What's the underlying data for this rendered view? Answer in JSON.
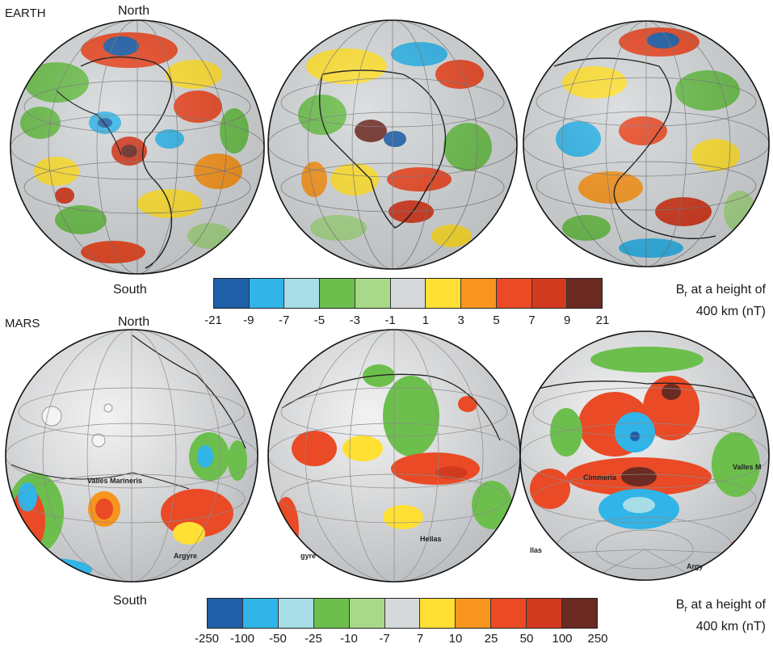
{
  "earth": {
    "title": "EARTH",
    "north": "North",
    "south": "South",
    "colorbar": {
      "title_prefix": "B",
      "title_sub": "r",
      "title_rest": " at a height of",
      "title_line2": "400 km (nT)",
      "ticks": [
        "-21",
        "-9",
        "-7",
        "-5",
        "-3",
        "-1",
        "1",
        "3",
        "5",
        "7",
        "9",
        "21"
      ],
      "colors": [
        "#1f5fa8",
        "#31b4e8",
        "#a6dde6",
        "#6cbf4c",
        "#a8d88a",
        "#d6d9db",
        "#ffe033",
        "#f7951e",
        "#ea4a25",
        "#d23a1f",
        "#6b2a22"
      ]
    }
  },
  "mars": {
    "title": "MARS",
    "north": "North",
    "south": "South",
    "places": {
      "valles_marineris": "Valles Marineris",
      "argyre": "Argyre",
      "argyre_partial": "gyre",
      "hellas": "Hellas",
      "cimmeria": "Cimmeria",
      "valles_partial": "Valles M",
      "hellas_partial": "llas",
      "argyre_partial2": "Argy"
    },
    "colorbar": {
      "title_prefix": "B",
      "title_sub": "r",
      "title_rest": " at a height of",
      "title_line2": "400 km (nT)",
      "ticks": [
        "-250",
        "-100",
        "-50",
        "-25",
        "-10",
        "-7",
        "7",
        "10",
        "25",
        "50",
        "100",
        "250"
      ],
      "colors": [
        "#1f5fa8",
        "#31b4e8",
        "#a6dde6",
        "#6cbf4c",
        "#a8d88a",
        "#d6d9db",
        "#ffe033",
        "#f7951e",
        "#ea4a25",
        "#d23a1f",
        "#6b2a22"
      ]
    }
  }
}
